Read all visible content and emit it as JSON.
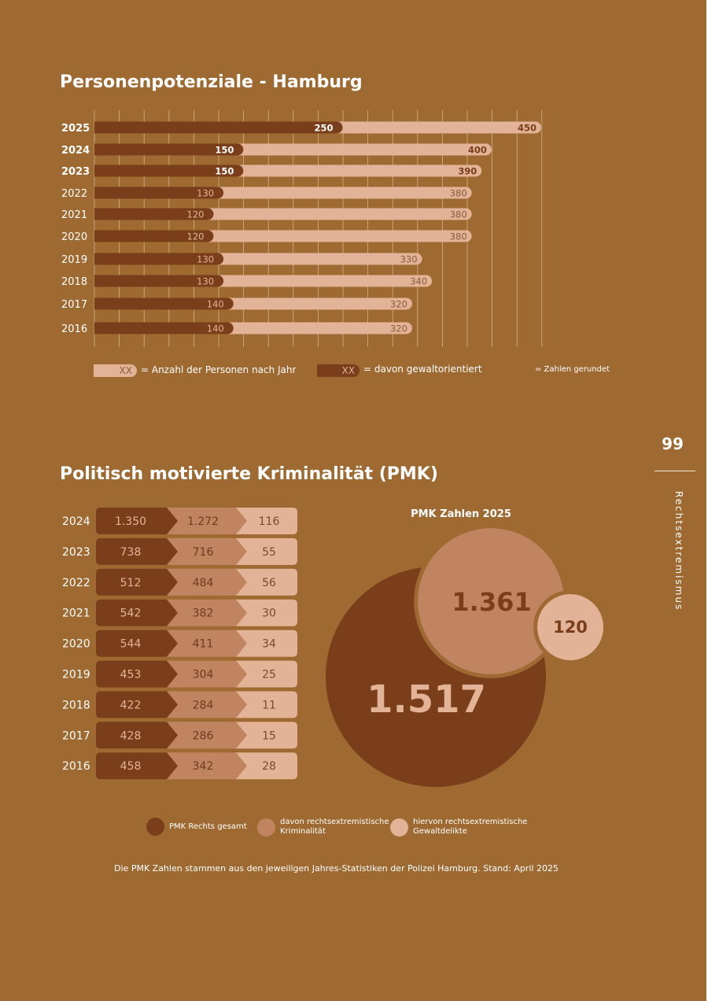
{
  "colors": {
    "background": "#9f6a31",
    "dark": "#7a3e1b",
    "mid": "#c08460",
    "light": "#e2b396",
    "text_dark": "#7a3e1b",
    "text_mid": "#8b5a3a"
  },
  "section1": {
    "title": "Personenpotenziale - Hamburg",
    "legend": {
      "xx_light": "XX",
      "light_label": "= Anzahl der Personen nach Jahr",
      "xx_dark": "XX",
      "dark_label": "= davon gewaltorientiert",
      "rounded_note": "= Zahlen gerundet"
    }
  },
  "section2": {
    "title": "Politisch motivierte Kriminalität (PMK)",
    "bubble_title": "PMK Zahlen 2025",
    "legend": [
      {
        "label_line1": "PMK Rechts gesamt",
        "label_line2": ""
      },
      {
        "label_line1": "davon rechtsextremistische",
        "label_line2": "Kriminalität"
      },
      {
        "label_line1": "hiervon rechtsextremistische",
        "label_line2": "Gewaltdelikte"
      }
    ],
    "source": "Die PMK Zahlen stammen aus den jeweiligen Jahres-Statistiken der Polizei Hamburg. Stand: April 2025"
  },
  "sidebar": {
    "page_number": "99",
    "label": "Rechtsextremismus"
  },
  "chart_data": [
    {
      "type": "bar",
      "orientation": "horizontal",
      "title": "Personenpotenziale - Hamburg",
      "categories": [
        "2025",
        "2024",
        "2023",
        "2022",
        "2021",
        "2020",
        "2019",
        "2018",
        "2017",
        "2016"
      ],
      "bold_categories": [
        "2025",
        "2024",
        "2023"
      ],
      "series": [
        {
          "name": "Anzahl der Personen nach Jahr",
          "values": [
            450,
            400,
            390,
            380,
            380,
            380,
            330,
            340,
            320,
            320
          ],
          "labels": [
            "450",
            "400",
            "390",
            "380",
            "380",
            "380",
            "330",
            "340",
            "320",
            "320"
          ]
        },
        {
          "name": "davon gewaltorientiert",
          "values": [
            250,
            150,
            150,
            130,
            120,
            120,
            130,
            130,
            140,
            140
          ],
          "labels": [
            "250",
            "150",
            "150",
            "130",
            "120",
            "120",
            "130",
            "130",
            "140",
            "140"
          ]
        }
      ],
      "xlim": [
        0,
        450
      ],
      "grid": true
    },
    {
      "type": "table",
      "title": "Politisch motivierte Kriminalität (PMK)",
      "rows": [
        {
          "year": "2024",
          "total": "1.350",
          "extremist": "1.272",
          "violent": "116"
        },
        {
          "year": "2023",
          "total": "738",
          "extremist": "716",
          "violent": "55"
        },
        {
          "year": "2022",
          "total": "512",
          "extremist": "484",
          "violent": "56"
        },
        {
          "year": "2021",
          "total": "542",
          "extremist": "382",
          "violent": "30"
        },
        {
          "year": "2020",
          "total": "544",
          "extremist": "411",
          "violent": "34"
        },
        {
          "year": "2019",
          "total": "453",
          "extremist": "304",
          "violent": "25"
        },
        {
          "year": "2018",
          "total": "422",
          "extremist": "284",
          "violent": "11"
        },
        {
          "year": "2017",
          "total": "428",
          "extremist": "286",
          "violent": "15"
        },
        {
          "year": "2016",
          "total": "458",
          "extremist": "342",
          "violent": "28"
        }
      ]
    },
    {
      "type": "bubble",
      "title": "PMK Zahlen 2025",
      "values": [
        {
          "series": "PMK Rechts gesamt",
          "value": 1517,
          "label": "1.517"
        },
        {
          "series": "davon rechtsextremistische Kriminalität",
          "value": 1361,
          "label": "1.361"
        },
        {
          "series": "hiervon rechtsextremistische Gewaltdelikte",
          "value": 120,
          "label": "120"
        }
      ]
    }
  ]
}
